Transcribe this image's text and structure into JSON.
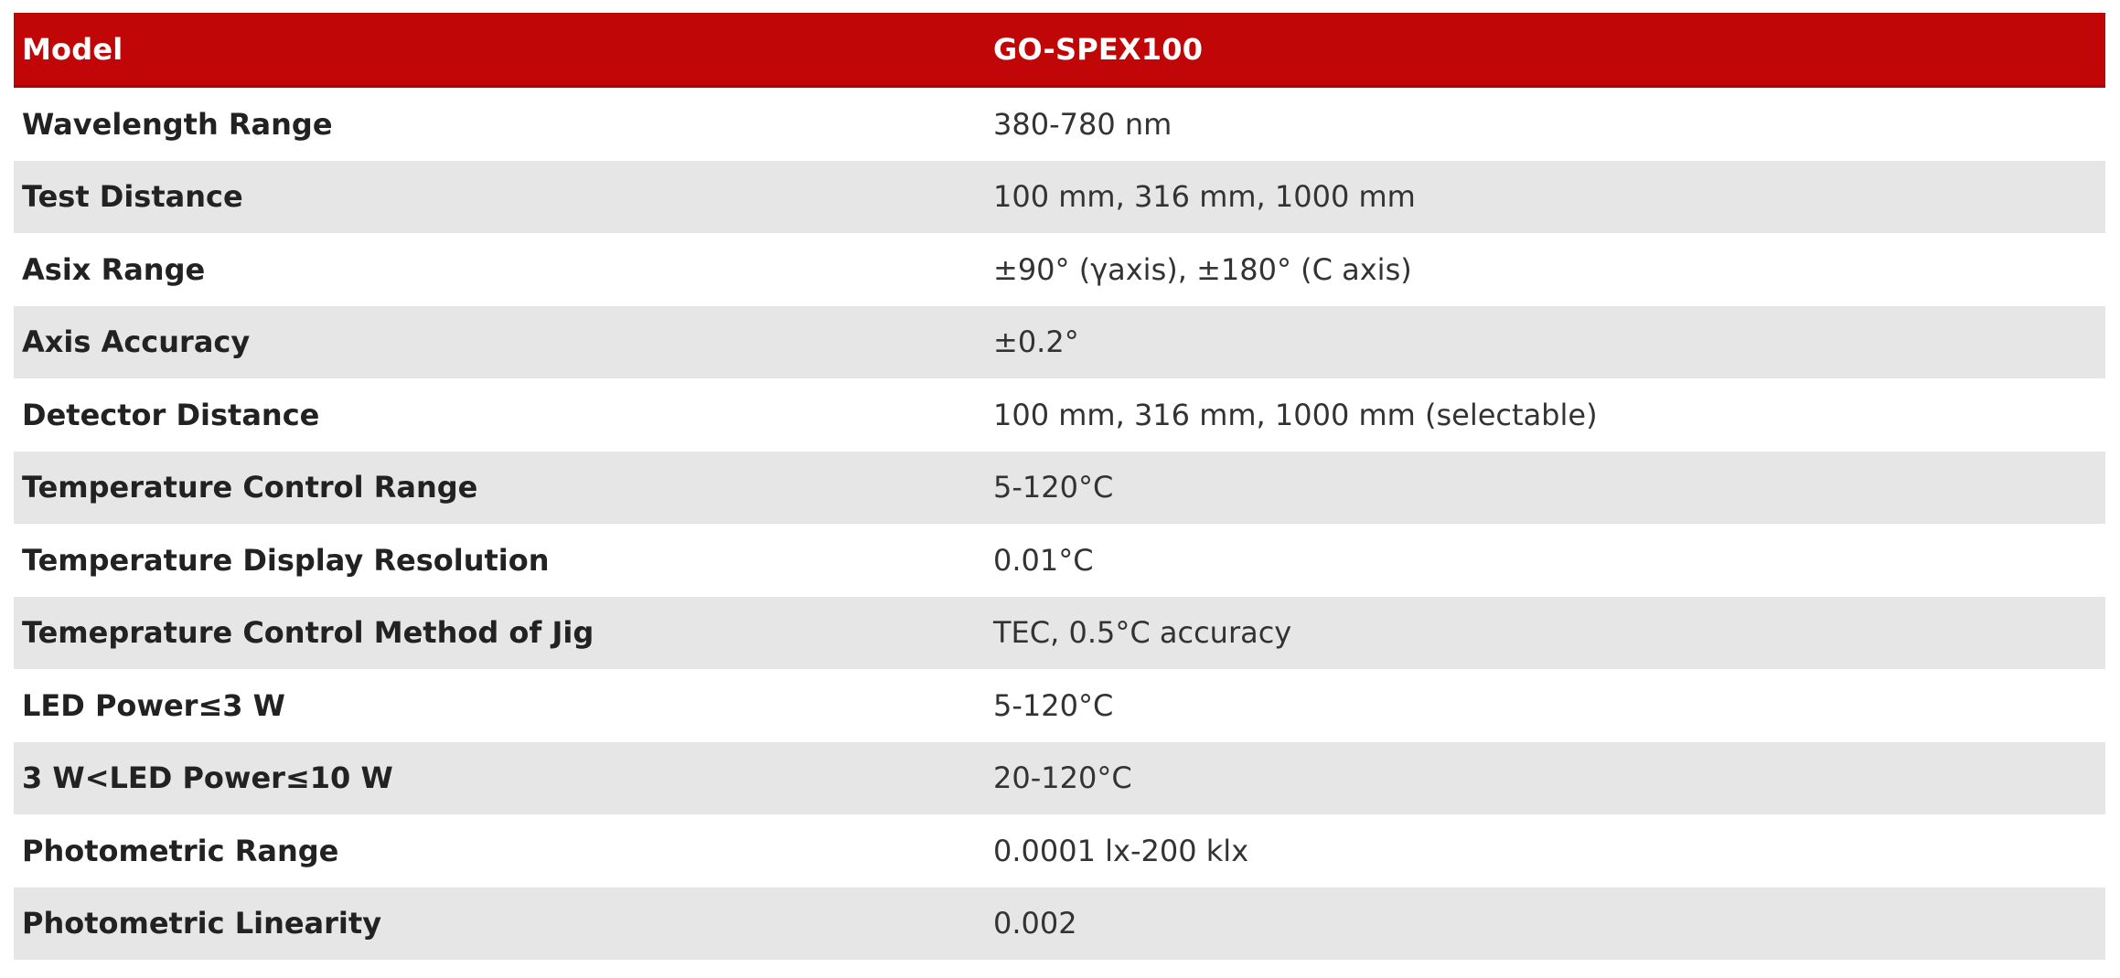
{
  "colors": {
    "header_bg": "#c00606",
    "header_border_bottom": "#a50505",
    "header_text": "#ffffff",
    "row_alt_bg": "#e6e6e6",
    "row_bg": "#ffffff",
    "label_text": "#222222",
    "value_text": "#333333"
  },
  "table": {
    "header": {
      "label": "Model",
      "value": "GO-SPEX100"
    },
    "rows": [
      {
        "label": "Wavelength Range",
        "value": "380-780 nm"
      },
      {
        "label": "Test Distance",
        "value": "100 mm, 316 mm, 1000 mm"
      },
      {
        "label": "Asix Range",
        "value": "±90° (γaxis), ±180° (C axis)"
      },
      {
        "label": "Axis Accuracy",
        "value": "±0.2°"
      },
      {
        "label": "Detector Distance",
        "value": "100 mm, 316 mm, 1000 mm (selectable)"
      },
      {
        "label": "Temperature Control Range",
        "value": "5-120°C"
      },
      {
        "label": "Temperature Display Resolution",
        "value": "0.01°C"
      },
      {
        "label": "Temeprature Control Method of Jig",
        "value": "TEC, 0.5°C accuracy"
      },
      {
        "label": "LED Power≤3 W",
        "value": "5-120°C"
      },
      {
        "label": "3 W<LED Power≤10 W",
        "value": "20-120°C"
      },
      {
        "label": "Photometric Range",
        "value": "0.0001 lx-200 klx"
      },
      {
        "label": "Photometric Linearity",
        "value": "0.002"
      }
    ]
  }
}
